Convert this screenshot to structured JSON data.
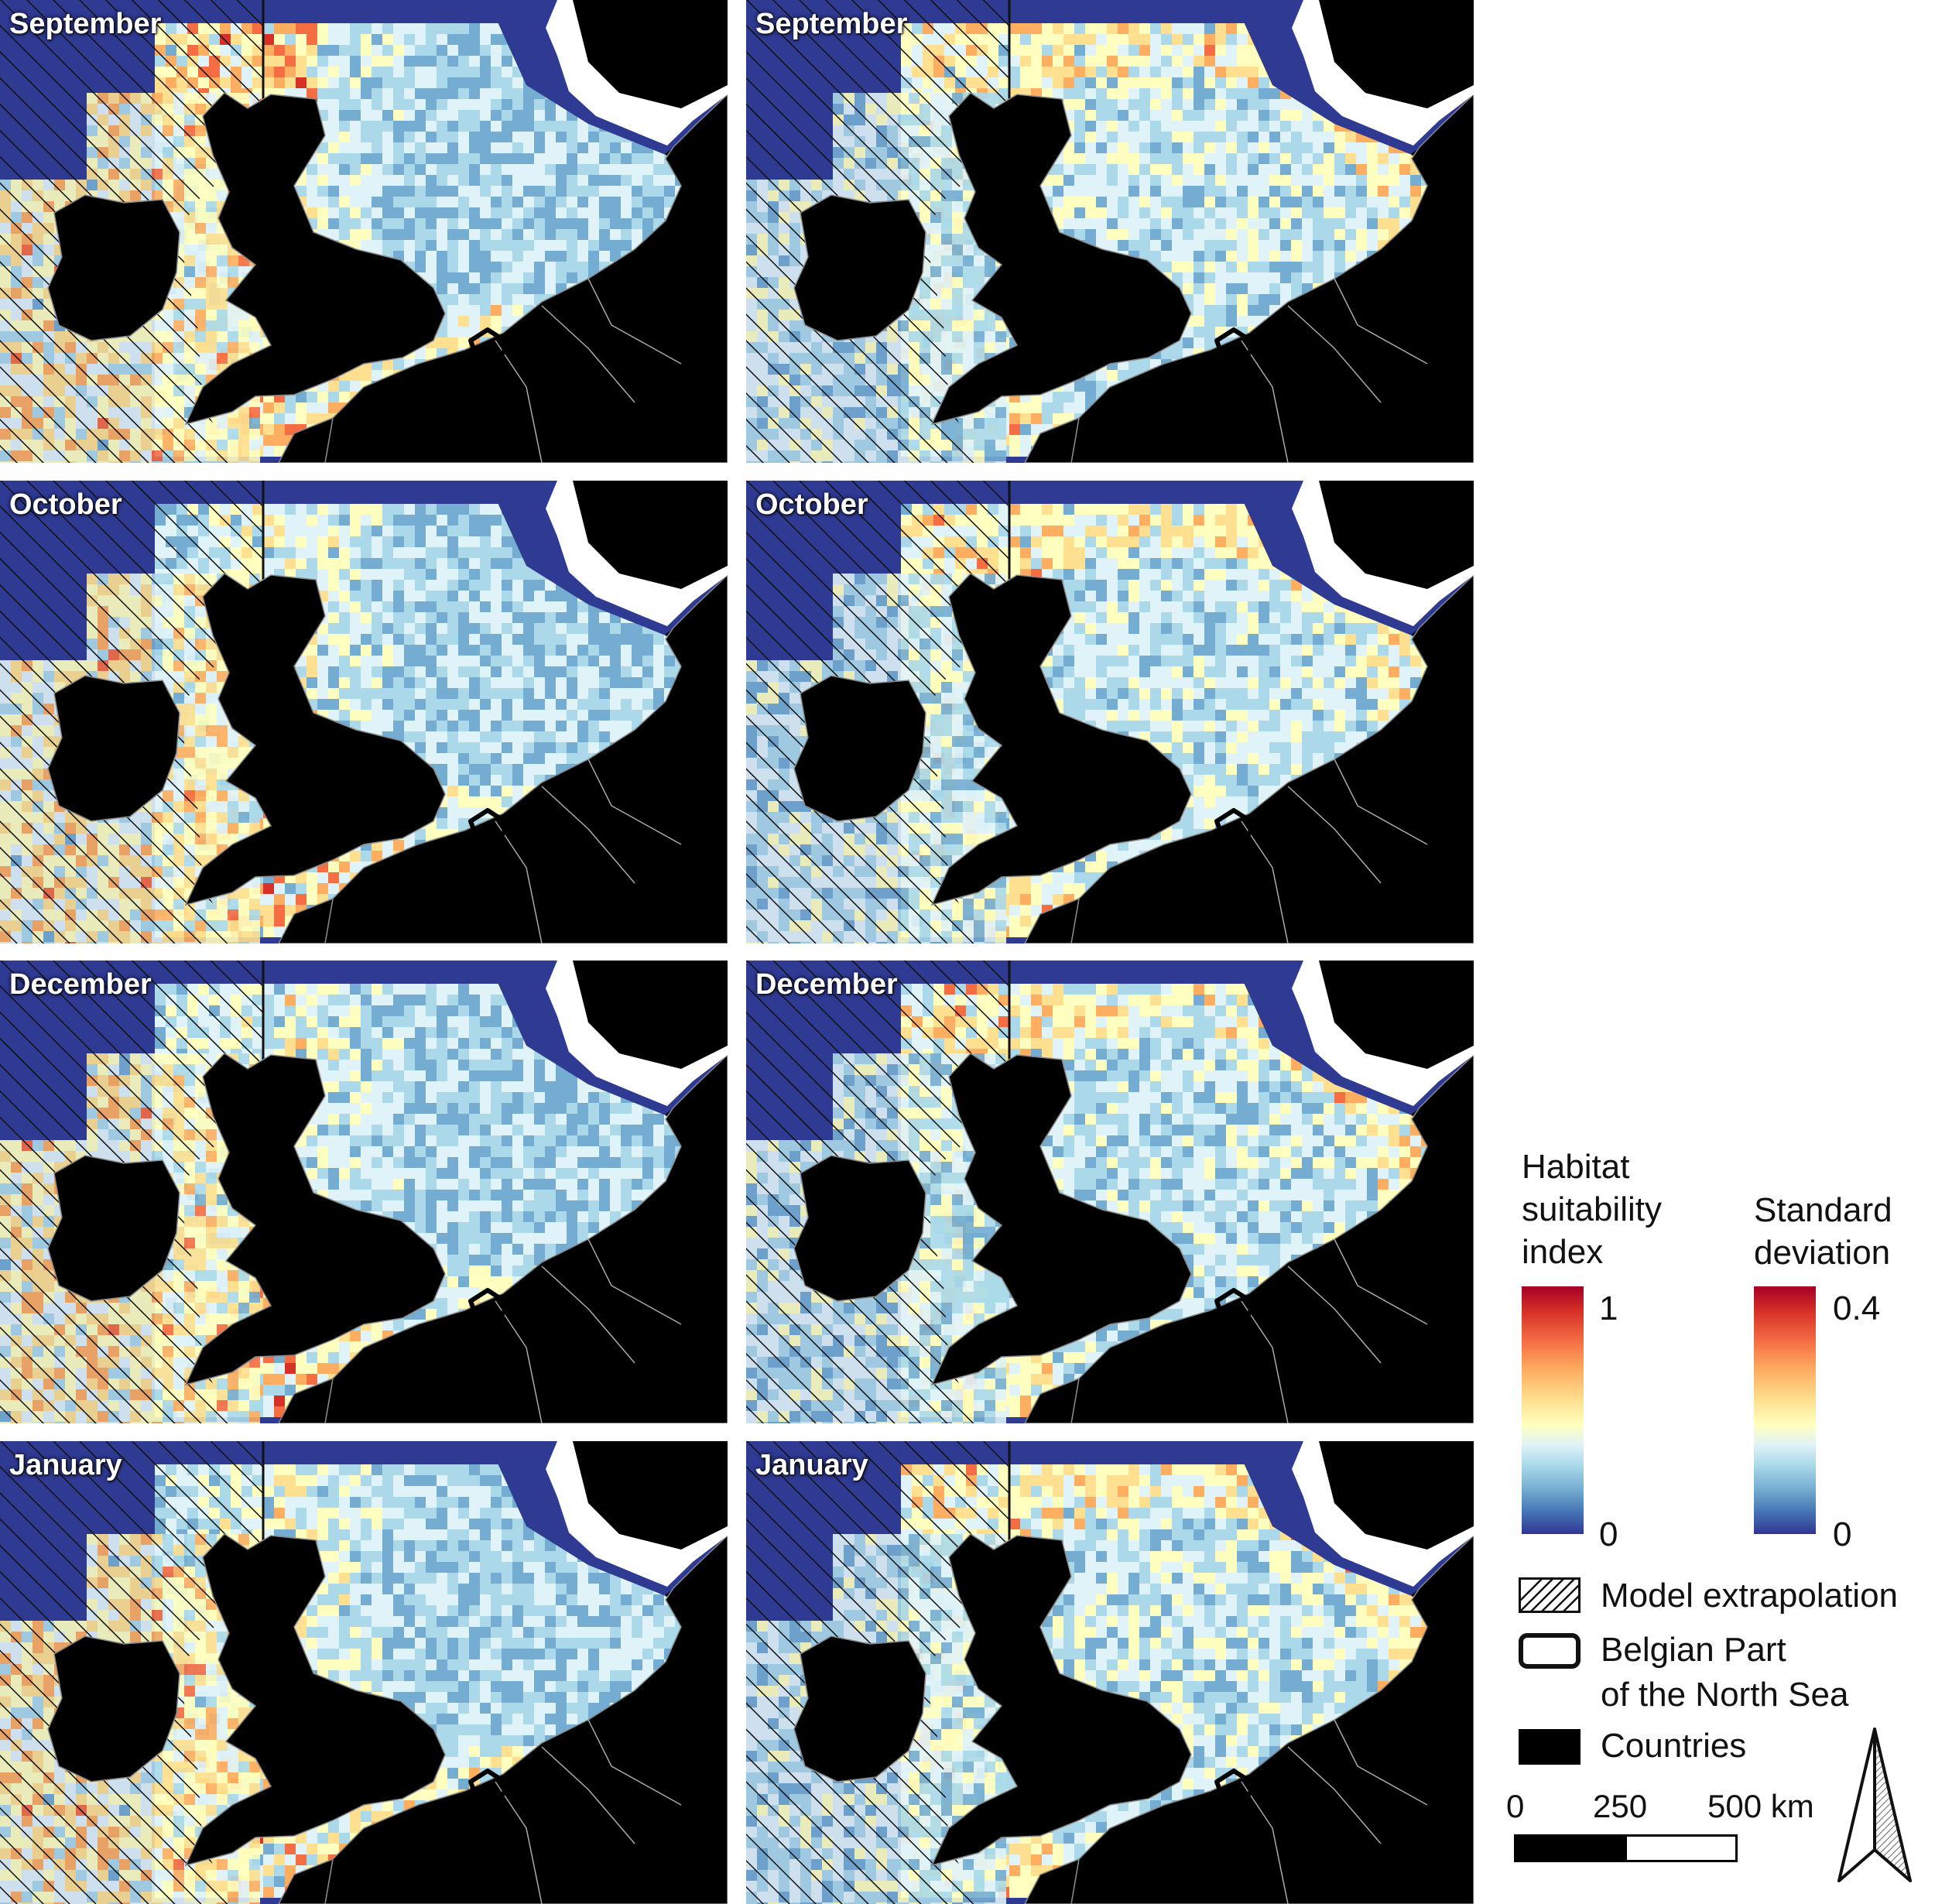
{
  "panels": [
    {
      "title": "September",
      "variable": "habitat-suitability",
      "seed": 11
    },
    {
      "title": "September",
      "variable": "standard-deviation",
      "seed": 12
    },
    {
      "title": "October",
      "variable": "habitat-suitability",
      "seed": 21
    },
    {
      "title": "October",
      "variable": "standard-deviation",
      "seed": 22
    },
    {
      "title": "December",
      "variable": "habitat-suitability",
      "seed": 31
    },
    {
      "title": "December",
      "variable": "standard-deviation",
      "seed": 32
    },
    {
      "title": "January",
      "variable": "habitat-suitability",
      "seed": 41
    },
    {
      "title": "January",
      "variable": "standard-deviation",
      "seed": 42
    }
  ],
  "legend": {
    "hsi": {
      "title_lines": [
        "Habitat",
        "suitability",
        "index"
      ],
      "max_label": "1",
      "min_label": "0"
    },
    "sd": {
      "title_lines": [
        "Standard",
        "deviation"
      ],
      "max_label": "0.4",
      "min_label": "0"
    },
    "colors": [
      "#313695",
      "#4575b4",
      "#74add1",
      "#abd9e9",
      "#e0f3f8",
      "#ffffbf",
      "#fee090",
      "#fdae61",
      "#f46d43",
      "#d73027",
      "#a50026"
    ],
    "extrapolation_label": "Model extrapolation",
    "bpns_label_line1": "Belgian Part",
    "bpns_label_line2": "of the North Sea",
    "countries_label": "Countries",
    "land_color": "#000000",
    "sea_color": "#2f3a93"
  },
  "scalebar": {
    "labels": [
      "0",
      "250",
      "500 km"
    ]
  },
  "north_arrow": "north-arrow-icon"
}
